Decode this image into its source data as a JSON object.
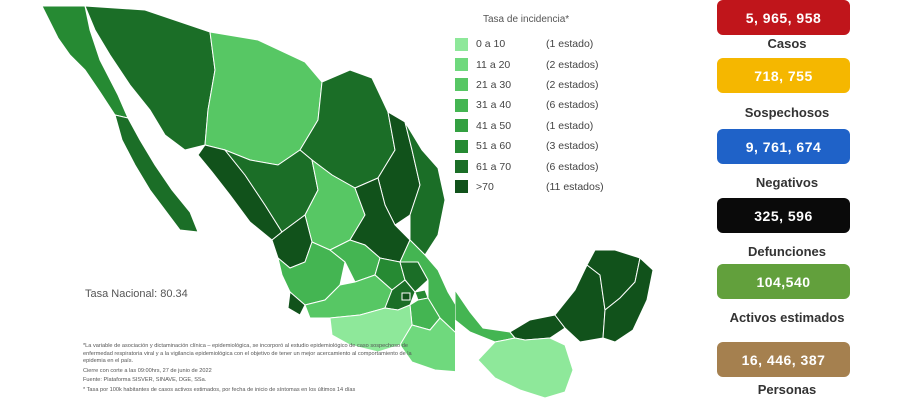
{
  "legend": {
    "title": "Tasa de incidencia*",
    "rows": [
      {
        "range": "0 a 10",
        "count": "(1 estado)",
        "color": "#8ee89a"
      },
      {
        "range": "11 a 20",
        "count": "(2 estados)",
        "color": "#6fd97d"
      },
      {
        "range": "21 a 30",
        "count": "(2 estados)",
        "color": "#57c764"
      },
      {
        "range": "31 a 40",
        "count": "(6 estados)",
        "color": "#44b552"
      },
      {
        "range": "41 a 50",
        "count": "(1 estado)",
        "color": "#33a041"
      },
      {
        "range": "51 a 60",
        "count": "(3 estados)",
        "color": "#268a33"
      },
      {
        "range": "61 a 70",
        "count": "(6 estados)",
        "color": "#1b6e27"
      },
      {
        "range": ">70",
        "count": "(11 estados)",
        "color": "#11521b"
      }
    ]
  },
  "tasa_nacional": "Tasa Nacional: 80.34",
  "footnotes": [
    "*La variable de asociación y dictaminación clínica – epidemiológica, se incorporó al estudio epidemiológico de caso sospechoso de enfermedad respiratoria viral y a la vigilancia epidemiológica con el objetivo de tener un mejor acercamiento al comportamiento de la epidemia en el país.",
    "Cierre con corte a las 09:00hrs, 27 de junio de 2022",
    "Fuente: Plataforma SISVER, SINAVE, DGE, SSa.",
    "* Tasa por 100k habitantes de casos activos estimados, por fecha de inicio de síntomas en los últimos 14 días"
  ],
  "stats": [
    {
      "value": "5, 965, 958",
      "label": "Casos",
      "color": "#c0151b"
    },
    {
      "value": "718, 755",
      "label": "Sospechosos",
      "color": "#f5b700"
    },
    {
      "value": "9, 761, 674",
      "label": "Negativos",
      "color": "#1f62c8"
    },
    {
      "value": "325, 596",
      "label": "Defunciones",
      "color": "#0a0a0a"
    },
    {
      "value": "104,540",
      "label": "Activos estimados",
      "color": "#62a03c"
    },
    {
      "value": "16, 446, 387",
      "label": "Personas",
      "color": "#a5804f"
    }
  ],
  "map_colors": {
    "border": "#ffffff",
    "state_outline": "#2a8a36"
  }
}
